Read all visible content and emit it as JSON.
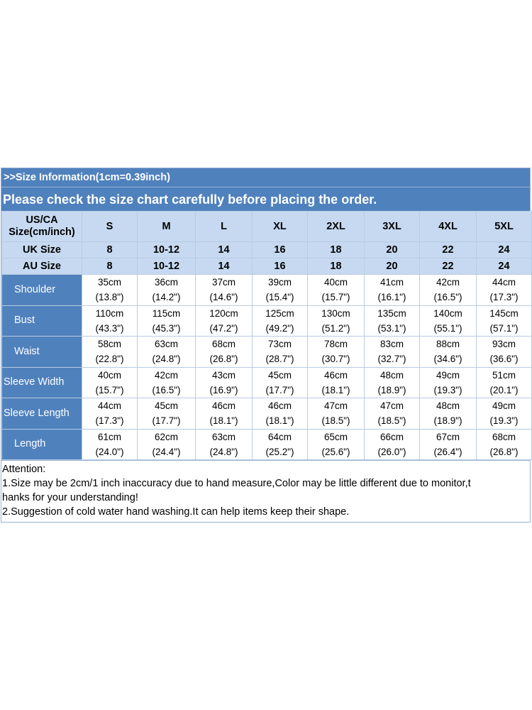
{
  "banner": {
    "title": ">>Size Information(1cm=0.39inch)",
    "subtitle": "Please check the size chart carefully before placing the order."
  },
  "table": {
    "corner_label": "US/CA Size(cm/inch)",
    "sizes": [
      "S",
      "M",
      "L",
      "XL",
      "2XL",
      "3XL",
      "4XL",
      "5XL"
    ],
    "uk": {
      "label": "UK Size",
      "values": [
        "8",
        "10-12",
        "14",
        "16",
        "18",
        "20",
        "22",
        "24"
      ]
    },
    "au": {
      "label": "AU Size",
      "values": [
        "8",
        "10-12",
        "14",
        "16",
        "18",
        "20",
        "22",
        "24"
      ]
    },
    "rows": [
      {
        "label": "Shoulder",
        "cm": [
          "35cm",
          "36cm",
          "37cm",
          "39cm",
          "40cm",
          "41cm",
          "42cm",
          "44cm"
        ],
        "inch": [
          "(13.8\")",
          "(14.2\")",
          "(14.6\")",
          "(15.4\")",
          "(15.7\")",
          "(16.1\")",
          "(16.5\")",
          "(17.3\")"
        ]
      },
      {
        "label": "Bust",
        "cm": [
          "110cm",
          "115cm",
          "120cm",
          "125cm",
          "130cm",
          "135cm",
          "140cm",
          "145cm"
        ],
        "inch": [
          "(43.3\")",
          "(45.3\")",
          "(47.2\")",
          "(49.2\")",
          "(51.2\")",
          "(53.1\")",
          "(55.1\")",
          "(57.1\")"
        ]
      },
      {
        "label": "Waist",
        "cm": [
          "58cm",
          "63cm",
          "68cm",
          "73cm",
          "78cm",
          "83cm",
          "88cm",
          "93cm"
        ],
        "inch": [
          "(22.8\")",
          "(24.8\")",
          "(26.8\")",
          "(28.7\")",
          "(30.7\")",
          "(32.7\")",
          "(34.6\")",
          "(36.6\")"
        ]
      },
      {
        "label": "Sleeve Width",
        "cm": [
          "40cm",
          "42cm",
          "43cm",
          "45cm",
          "46cm",
          "48cm",
          "49cm",
          "51cm"
        ],
        "inch": [
          "(15.7\")",
          "(16.5\")",
          "(16.9\")",
          "(17.7\")",
          "(18.1\")",
          "(18.9\")",
          "(19.3\")",
          "(20.1\")"
        ]
      },
      {
        "label": "Sleeve Length",
        "cm": [
          "44cm",
          "45cm",
          "46cm",
          "46cm",
          "47cm",
          "47cm",
          "48cm",
          "49cm"
        ],
        "inch": [
          "(17.3\")",
          "(17.7\")",
          "(18.1\")",
          "(18.1\")",
          "(18.5\")",
          "(18.5\")",
          "(18.9\")",
          "(19.3\")"
        ]
      },
      {
        "label": "Length",
        "cm": [
          "61cm",
          "62cm",
          "63cm",
          "64cm",
          "65cm",
          "66cm",
          "67cm",
          "68cm"
        ],
        "inch": [
          "(24.0\")",
          "(24.4\")",
          "(24.8\")",
          "(25.2\")",
          "(25.6\")",
          "(26.0\")",
          "(26.4\")",
          "(26.8\")"
        ]
      }
    ]
  },
  "notes": {
    "heading": "Attention:",
    "line1": "1.Size may be 2cm/1 inch inaccuracy due to hand measure,Color may be little different due to monitor,t",
    "line1b": "hanks for your understanding!",
    "line2": "2.Suggestion of cold water hand washing.It can help items keep their shape."
  },
  "colors": {
    "banner": "#4f81bd",
    "header_cells": "#c6d9f1",
    "row_labels": "#4f81bd",
    "borders": "#b8cbe4"
  }
}
